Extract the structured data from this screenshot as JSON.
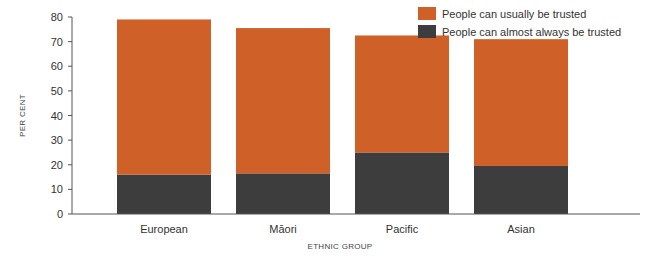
{
  "chart_data": {
    "type": "bar",
    "stacked": true,
    "legend": "top-right",
    "x_label": "ETHNIC GROUP",
    "y_label": "PER CENT",
    "categories": [
      "European",
      "Māori",
      "Pacific",
      "Asian"
    ],
    "series": [
      {
        "name": "People can almost always be trusted",
        "color": "#3d3d3d",
        "values": [
          16,
          16.5,
          25,
          19.5
        ]
      },
      {
        "name": "People can usually be trusted",
        "color": "#cf6128",
        "values": [
          63,
          59,
          47.5,
          51.5
        ]
      }
    ],
    "ylim": [
      0,
      80
    ],
    "yticks": [
      0,
      10,
      20,
      30,
      40,
      50,
      60,
      70,
      80
    ]
  }
}
